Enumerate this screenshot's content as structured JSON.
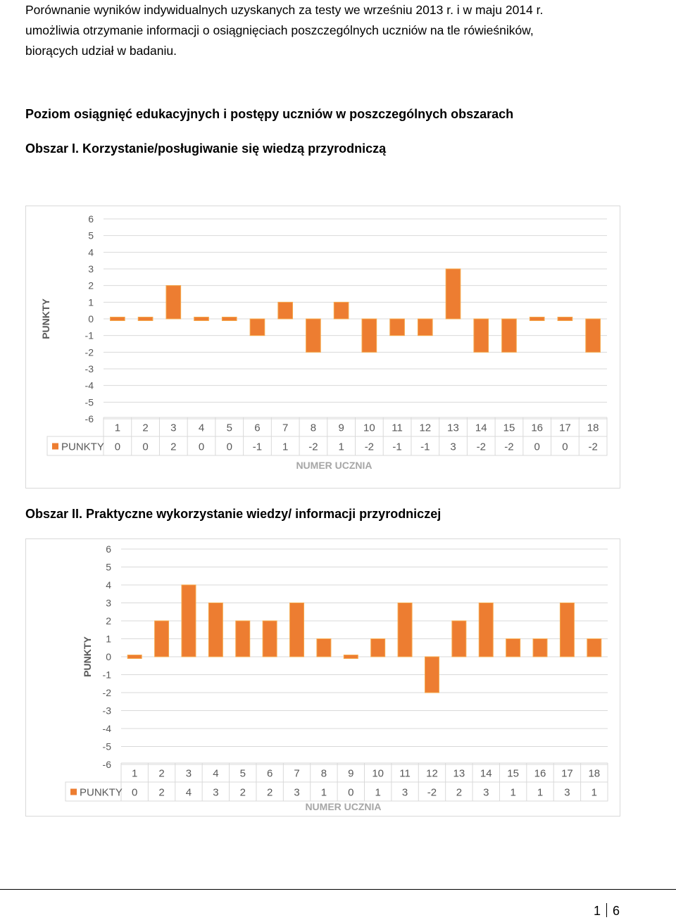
{
  "intro": {
    "lines": [
      "Porównanie wyników indywidualnych uzyskanych za testy we wrześniu 2013 r. i w maju 2014 r.",
      "umożliwia otrzymanie informacji o osiągnięciach poszczególnych uczniów na tle rówieśników,",
      "biorących udział w badaniu."
    ]
  },
  "section_heading": "Poziom osiągnięć edukacyjnych i postępy uczniów w poszczególnych obszarach",
  "area1_heading": "Obszar I. Korzystanie/posługiwanie się wiedzą przyrodniczą",
  "area2_heading": "Obszar II. Praktyczne wykorzystanie wiedzy/ informacji przyrodniczej",
  "page": {
    "current": "1",
    "total": "6"
  },
  "colors": {
    "bar": "#ed7d31",
    "axis_text": "#595959",
    "grid": "#d9d9d9"
  },
  "chart_data": [
    {
      "type": "bar",
      "categories": [
        "1",
        "2",
        "3",
        "4",
        "5",
        "6",
        "7",
        "8",
        "9",
        "10",
        "11",
        "12",
        "13",
        "14",
        "15",
        "16",
        "17",
        "18"
      ],
      "series": [
        {
          "name": "PUNKTY",
          "values": [
            0,
            0,
            2,
            0,
            0,
            -1,
            1,
            -2,
            1,
            -2,
            -1,
            -1,
            3,
            -2,
            -2,
            0,
            0,
            -2
          ]
        }
      ],
      "xlabel": "NUMER UCZNIA",
      "ylabel": "PUNKTY",
      "ylim": [
        -6,
        6
      ],
      "yticks": [
        6,
        5,
        4,
        3,
        2,
        1,
        0,
        -1,
        -2,
        -3,
        -4,
        -5,
        -6
      ],
      "grid": true,
      "data_table": true
    },
    {
      "type": "bar",
      "categories": [
        "1",
        "2",
        "3",
        "4",
        "5",
        "6",
        "7",
        "8",
        "9",
        "10",
        "11",
        "12",
        "13",
        "14",
        "15",
        "16",
        "17",
        "18"
      ],
      "series": [
        {
          "name": "PUNKTY",
          "values": [
            0,
            2,
            4,
            3,
            2,
            2,
            3,
            1,
            0,
            1,
            3,
            -2,
            2,
            3,
            1,
            1,
            3,
            1
          ]
        }
      ],
      "xlabel": "NUMER UCZNIA",
      "ylabel": "PUNKTY",
      "ylim": [
        -6,
        6
      ],
      "yticks": [
        6,
        5,
        4,
        3,
        2,
        1,
        0,
        -1,
        -2,
        -3,
        -4,
        -5,
        -6
      ],
      "grid": true,
      "data_table": true
    }
  ]
}
